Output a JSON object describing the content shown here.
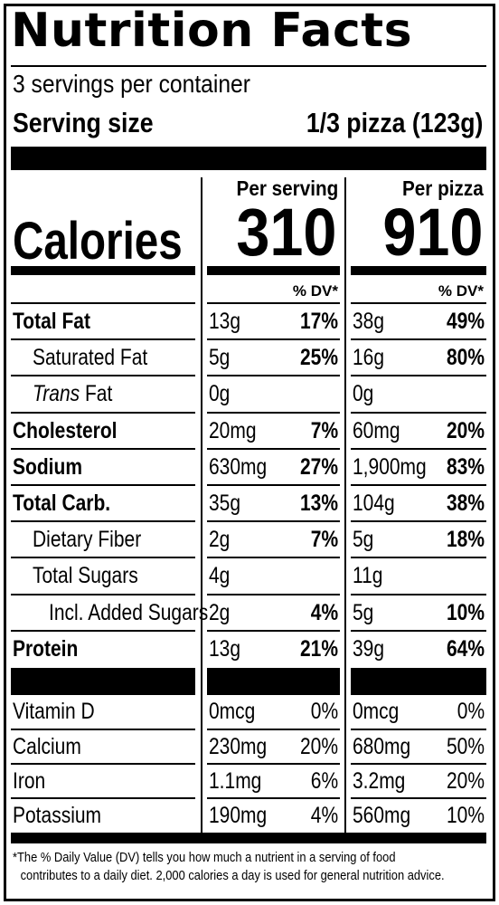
{
  "title": "Nutrition Facts",
  "servings_per_container": "3 servings per container",
  "serving_size": {
    "label": "Serving size",
    "value": "1/3 pizza (123g)"
  },
  "columns": [
    {
      "header": "Per serving",
      "calories": "310",
      "dv_header": "% DV*"
    },
    {
      "header": "Per pizza",
      "calories": "910",
      "dv_header": "% DV*"
    }
  ],
  "calories_label": "Calories",
  "nutrients": [
    {
      "label": "Total Fat",
      "italic_prefix": "",
      "bold": true,
      "indent": 0,
      "per_serving": {
        "amount": "13g",
        "dv": "17%"
      },
      "per_pizza": {
        "amount": "38g",
        "dv": "49%"
      }
    },
    {
      "label": "Saturated Fat",
      "italic_prefix": "",
      "bold": false,
      "indent": 1,
      "per_serving": {
        "amount": "5g",
        "dv": "25%"
      },
      "per_pizza": {
        "amount": "16g",
        "dv": "80%"
      }
    },
    {
      "label": " Fat",
      "italic_prefix": "Trans",
      "bold": false,
      "indent": 1,
      "per_serving": {
        "amount": "0g",
        "dv": ""
      },
      "per_pizza": {
        "amount": "0g",
        "dv": ""
      }
    },
    {
      "label": "Cholesterol",
      "italic_prefix": "",
      "bold": true,
      "indent": 0,
      "per_serving": {
        "amount": "20mg",
        "dv": "7%"
      },
      "per_pizza": {
        "amount": "60mg",
        "dv": "20%"
      }
    },
    {
      "label": "Sodium",
      "italic_prefix": "",
      "bold": true,
      "indent": 0,
      "per_serving": {
        "amount": "630mg",
        "dv": "27%"
      },
      "per_pizza": {
        "amount": "1,900mg",
        "dv": "83%"
      }
    },
    {
      "label": "Total Carb.",
      "italic_prefix": "",
      "bold": true,
      "indent": 0,
      "per_serving": {
        "amount": "35g",
        "dv": "13%"
      },
      "per_pizza": {
        "amount": "104g",
        "dv": "38%"
      }
    },
    {
      "label": "Dietary Fiber",
      "italic_prefix": "",
      "bold": false,
      "indent": 1,
      "per_serving": {
        "amount": "2g",
        "dv": "7%"
      },
      "per_pizza": {
        "amount": "5g",
        "dv": "18%"
      }
    },
    {
      "label": "Total Sugars",
      "italic_prefix": "",
      "bold": false,
      "indent": 1,
      "per_serving": {
        "amount": "4g",
        "dv": ""
      },
      "per_pizza": {
        "amount": "11g",
        "dv": ""
      }
    },
    {
      "label": "Incl. Added Sugars",
      "italic_prefix": "",
      "bold": false,
      "indent": 2,
      "per_serving": {
        "amount": "2g",
        "dv": "4%"
      },
      "per_pizza": {
        "amount": "5g",
        "dv": "10%"
      }
    },
    {
      "label": "Protein",
      "italic_prefix": "",
      "bold": true,
      "indent": 0,
      "per_serving": {
        "amount": "13g",
        "dv": "21%"
      },
      "per_pizza": {
        "amount": "39g",
        "dv": "64%"
      }
    }
  ],
  "vitamins": [
    {
      "label": "Vitamin D",
      "per_serving": {
        "amount": "0mcg",
        "dv": "0%"
      },
      "per_pizza": {
        "amount": "0mcg",
        "dv": "0%"
      }
    },
    {
      "label": "Calcium",
      "per_serving": {
        "amount": "230mg",
        "dv": "20%"
      },
      "per_pizza": {
        "amount": "680mg",
        "dv": "50%"
      }
    },
    {
      "label": "Iron",
      "per_serving": {
        "amount": "1.1mg",
        "dv": "6%"
      },
      "per_pizza": {
        "amount": "3.2mg",
        "dv": "20%"
      }
    },
    {
      "label": "Potassium",
      "per_serving": {
        "amount": "190mg",
        "dv": "4%"
      },
      "per_pizza": {
        "amount": "560mg",
        "dv": "10%"
      }
    }
  ],
  "footnote": {
    "line1": "*The % Daily Value (DV) tells you how much a nutrient in a serving of food",
    "line2": "contributes to a daily diet. 2,000 calories a day is used for general nutrition advice."
  }
}
